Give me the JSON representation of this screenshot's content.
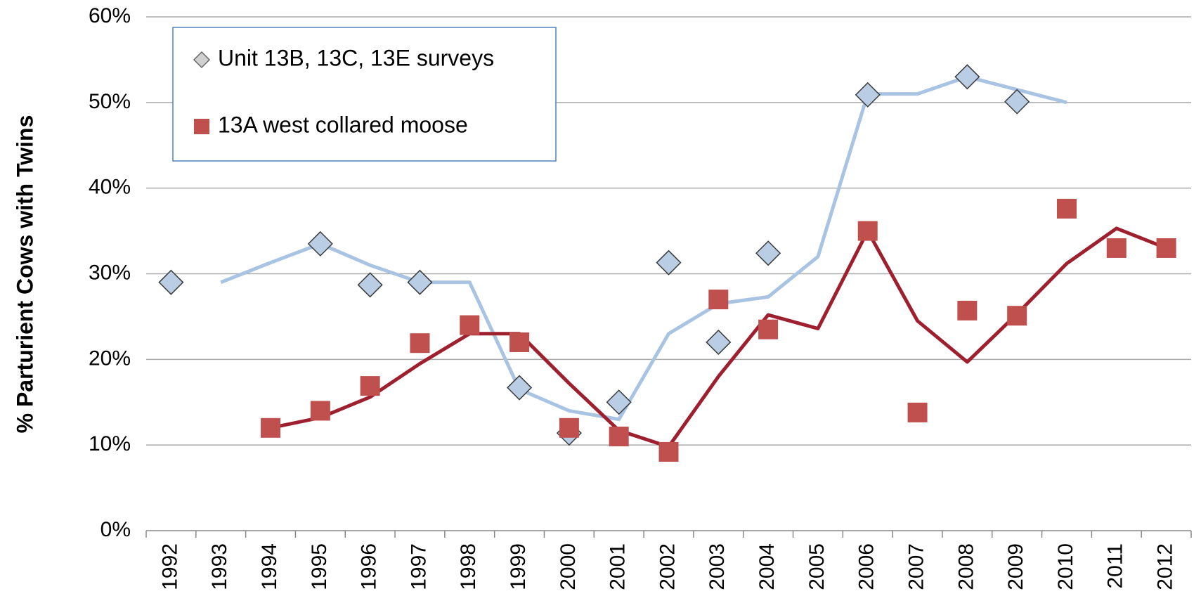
{
  "chart_data": {
    "type": "scatter",
    "y_label": "% Parturient Cows with Twins",
    "categories": [
      "1992",
      "1993",
      "1994",
      "1995",
      "1996",
      "1997",
      "1998",
      "1999",
      "2000",
      "2001",
      "2002",
      "2003",
      "2004",
      "2005",
      "2006",
      "2007",
      "2008",
      "2009",
      "2010",
      "2011",
      "2012"
    ],
    "ylim": [
      0,
      60
    ],
    "yticks": [
      {
        "value": 0,
        "label": "0%"
      },
      {
        "value": 10,
        "label": "10%"
      },
      {
        "value": 20,
        "label": "20%"
      },
      {
        "value": 30,
        "label": "30%"
      },
      {
        "value": 40,
        "label": "40%"
      },
      {
        "value": 50,
        "label": "50%"
      },
      {
        "value": 60,
        "label": "60%"
      }
    ],
    "grid": true,
    "legend": "upper left",
    "series": [
      {
        "name": "Unit 13B, 13C, 13E surveys",
        "color": "#b9cde5",
        "marker": "diamond",
        "trend_color": "#a9c3e2",
        "values": [
          29,
          null,
          null,
          33.5,
          28.7,
          29,
          null,
          16.7,
          11.4,
          15,
          31.3,
          22,
          32.4,
          null,
          50.9,
          null,
          53,
          50.1,
          null,
          null,
          null
        ],
        "trend": [
          null,
          29,
          31.3,
          33.5,
          31,
          29,
          29,
          16.5,
          14,
          13,
          23,
          26.5,
          27.3,
          32,
          51,
          51,
          53,
          51.5,
          50,
          null,
          null
        ]
      },
      {
        "name": "13A west collared moose",
        "color": "#c0504d",
        "marker": "square",
        "trend_color": "#9e1f2e",
        "values": [
          null,
          null,
          12,
          14,
          16.9,
          21.9,
          24,
          22,
          12,
          11,
          9.2,
          27,
          23.5,
          null,
          35,
          13.8,
          25.7,
          25.1,
          37.6,
          33,
          33
        ],
        "trend": [
          null,
          null,
          12,
          13.2,
          15.6,
          19.5,
          23,
          23,
          17.2,
          11.7,
          9.8,
          18,
          25.2,
          23.6,
          35,
          24.5,
          19.7,
          25.3,
          31.2,
          35.3,
          33
        ]
      }
    ]
  }
}
